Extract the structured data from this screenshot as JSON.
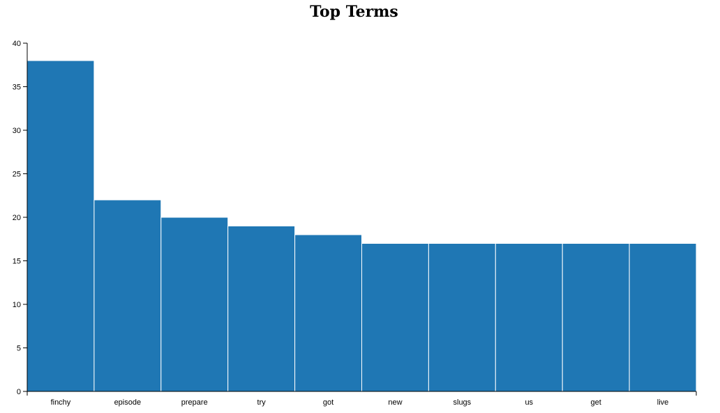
{
  "chart_data": {
    "type": "bar",
    "title": "Top Terms",
    "xlabel": "",
    "ylabel": "",
    "categories": [
      "finchy",
      "episode",
      "prepare",
      "try",
      "got",
      "new",
      "slugs",
      "us",
      "get",
      "live"
    ],
    "values": [
      38,
      22,
      20,
      19,
      18,
      17,
      17,
      17,
      17,
      17
    ],
    "ylim": [
      0,
      40
    ],
    "yticks": [
      0,
      5,
      10,
      15,
      20,
      25,
      30,
      35,
      40
    ],
    "grid": false,
    "bar_color": "#1f77b4",
    "bar_edge_color": "#ffffff"
  }
}
